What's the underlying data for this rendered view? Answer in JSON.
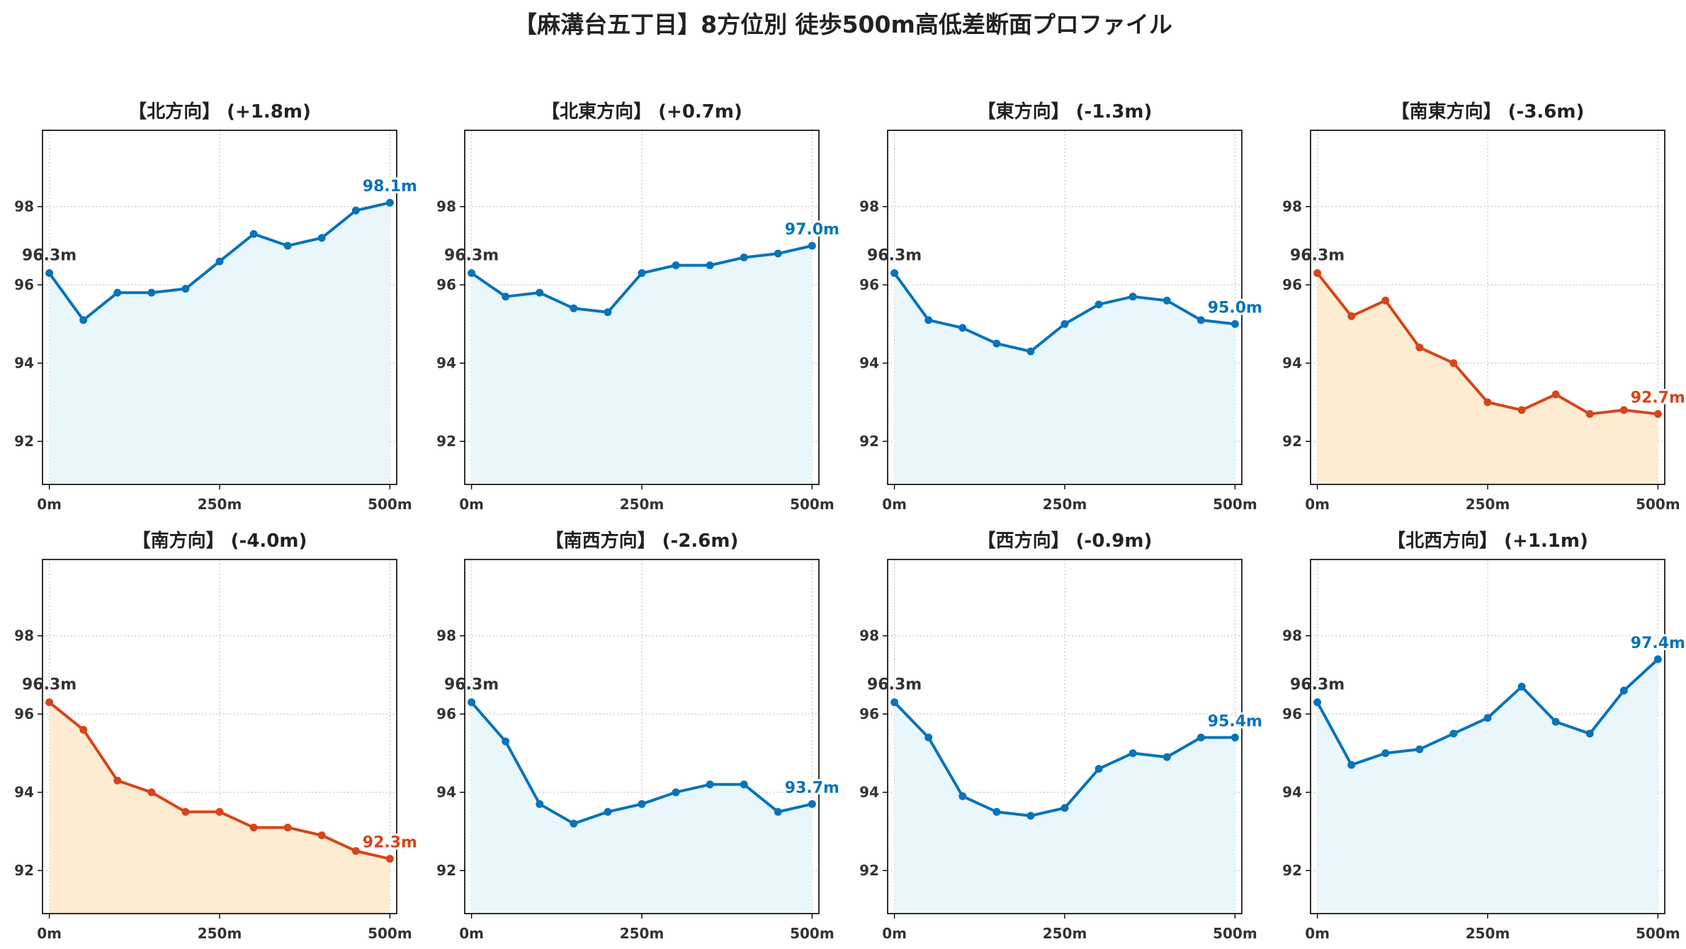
{
  "title": "【麻溝台五丁目】8方位別 徒歩500m高低差断面プロファイル",
  "colors": {
    "up": "#0873b9",
    "down": "#d6451a",
    "up_fill": "#e9f7fc",
    "down_fill": "#fdecd2",
    "start_label": "#333333"
  },
  "chart_data": [
    {
      "type": "line",
      "title": "【北方向】 (+1.8m)",
      "trend": "up",
      "x": [
        0,
        50,
        100,
        150,
        200,
        250,
        300,
        350,
        400,
        450,
        500
      ],
      "y": [
        96.3,
        95.1,
        95.8,
        95.8,
        95.9,
        96.6,
        97.3,
        97.0,
        97.2,
        97.9,
        98.1
      ],
      "xticks": [
        "0m",
        "250m",
        "500m"
      ],
      "yticks": [
        "92",
        "94",
        "96",
        "98"
      ],
      "start_label": "96.3m",
      "end_label": "98.1m",
      "ylim": [
        90.9,
        99.95
      ],
      "xlim": [
        -10,
        510
      ],
      "grid": true
    },
    {
      "type": "line",
      "title": "【北東方向】 (+0.7m)",
      "trend": "up",
      "x": [
        0,
        50,
        100,
        150,
        200,
        250,
        300,
        350,
        400,
        450,
        500
      ],
      "y": [
        96.3,
        95.7,
        95.8,
        95.4,
        95.3,
        96.3,
        96.5,
        96.5,
        96.7,
        96.8,
        97.0
      ],
      "xticks": [
        "0m",
        "250m",
        "500m"
      ],
      "yticks": [
        "92",
        "94",
        "96",
        "98"
      ],
      "start_label": "96.3m",
      "end_label": "97.0m",
      "ylim": [
        90.9,
        99.95
      ],
      "xlim": [
        -10,
        510
      ],
      "grid": true
    },
    {
      "type": "line",
      "title": "【東方向】 (-1.3m)",
      "trend": "up",
      "x": [
        0,
        50,
        100,
        150,
        200,
        250,
        300,
        350,
        400,
        450,
        500
      ],
      "y": [
        96.3,
        95.1,
        94.9,
        94.5,
        94.3,
        95.0,
        95.5,
        95.7,
        95.6,
        95.1,
        95.0
      ],
      "xticks": [
        "0m",
        "250m",
        "500m"
      ],
      "yticks": [
        "92",
        "94",
        "96",
        "98"
      ],
      "start_label": "96.3m",
      "end_label": "95.0m",
      "ylim": [
        90.9,
        99.95
      ],
      "xlim": [
        -10,
        510
      ],
      "grid": true
    },
    {
      "type": "line",
      "title": "【南東方向】 (-3.6m)",
      "trend": "down",
      "x": [
        0,
        50,
        100,
        150,
        200,
        250,
        300,
        350,
        400,
        450,
        500
      ],
      "y": [
        96.3,
        95.2,
        95.6,
        94.4,
        94.0,
        93.0,
        92.8,
        93.2,
        92.7,
        92.8,
        92.7
      ],
      "xticks": [
        "0m",
        "250m",
        "500m"
      ],
      "yticks": [
        "92",
        "94",
        "96",
        "98"
      ],
      "start_label": "96.3m",
      "end_label": "92.7m",
      "ylim": [
        90.9,
        99.95
      ],
      "xlim": [
        -10,
        510
      ],
      "grid": true
    },
    {
      "type": "line",
      "title": "【南方向】 (-4.0m)",
      "trend": "down",
      "x": [
        0,
        50,
        100,
        150,
        200,
        250,
        300,
        350,
        400,
        450,
        500
      ],
      "y": [
        96.3,
        95.6,
        94.3,
        94.0,
        93.5,
        93.5,
        93.1,
        93.1,
        92.9,
        92.5,
        92.3
      ],
      "xticks": [
        "0m",
        "250m",
        "500m"
      ],
      "yticks": [
        "92",
        "94",
        "96",
        "98"
      ],
      "start_label": "96.3m",
      "end_label": "92.3m",
      "ylim": [
        90.9,
        99.95
      ],
      "xlim": [
        -10,
        510
      ],
      "grid": true
    },
    {
      "type": "line",
      "title": "【南西方向】 (-2.6m)",
      "trend": "up",
      "x": [
        0,
        50,
        100,
        150,
        200,
        250,
        300,
        350,
        400,
        450,
        500
      ],
      "y": [
        96.3,
        95.3,
        93.7,
        93.2,
        93.5,
        93.7,
        94.0,
        94.2,
        94.2,
        93.5,
        93.7
      ],
      "xticks": [
        "0m",
        "250m",
        "500m"
      ],
      "yticks": [
        "92",
        "94",
        "96",
        "98"
      ],
      "start_label": "96.3m",
      "end_label": "93.7m",
      "ylim": [
        90.9,
        99.95
      ],
      "xlim": [
        -10,
        510
      ],
      "grid": true
    },
    {
      "type": "line",
      "title": "【西方向】 (-0.9m)",
      "trend": "up",
      "x": [
        0,
        50,
        100,
        150,
        200,
        250,
        300,
        350,
        400,
        450,
        500
      ],
      "y": [
        96.3,
        95.4,
        93.9,
        93.5,
        93.4,
        93.6,
        94.6,
        95.0,
        94.9,
        95.4,
        95.4
      ],
      "xticks": [
        "0m",
        "250m",
        "500m"
      ],
      "yticks": [
        "92",
        "94",
        "96",
        "98"
      ],
      "start_label": "96.3m",
      "end_label": "95.4m",
      "ylim": [
        90.9,
        99.95
      ],
      "xlim": [
        -10,
        510
      ],
      "grid": true
    },
    {
      "type": "line",
      "title": "【北西方向】 (+1.1m)",
      "trend": "up",
      "x": [
        0,
        50,
        100,
        150,
        200,
        250,
        300,
        350,
        400,
        450,
        500
      ],
      "y": [
        96.3,
        94.7,
        95.0,
        95.1,
        95.5,
        95.9,
        96.7,
        95.8,
        95.5,
        96.6,
        97.4
      ],
      "xticks": [
        "0m",
        "250m",
        "500m"
      ],
      "yticks": [
        "92",
        "94",
        "96",
        "98"
      ],
      "start_label": "96.3m",
      "end_label": "97.4m",
      "ylim": [
        90.9,
        99.95
      ],
      "xlim": [
        -10,
        510
      ],
      "grid": true
    }
  ]
}
